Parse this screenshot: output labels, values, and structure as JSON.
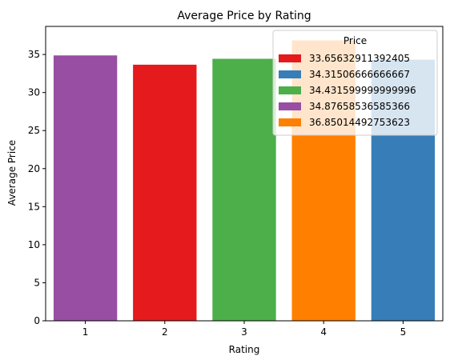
{
  "chart_data": {
    "type": "bar",
    "title": "Average Price by Rating",
    "xlabel": "Rating",
    "ylabel": "Average Price",
    "categories": [
      "1",
      "2",
      "3",
      "4",
      "5"
    ],
    "values": [
      34.87658536585366,
      33.65632911392405,
      34.431599999999996,
      36.85014492753623,
      34.31506666666667
    ],
    "bar_colors": [
      "#984ea3",
      "#e41a1c",
      "#4daf4a",
      "#ff7f00",
      "#377eb8"
    ],
    "ylim": [
      0,
      38.69
    ],
    "yticks": [
      "0",
      "5",
      "10",
      "15",
      "20",
      "25",
      "30",
      "35"
    ],
    "grid": false,
    "legend": {
      "title": "Price",
      "placement": "upper right",
      "entries": [
        {
          "label": "33.65632911392405",
          "color": "#e41a1c"
        },
        {
          "label": "34.31506666666667",
          "color": "#377eb8"
        },
        {
          "label": "34.431599999999996",
          "color": "#4daf4a"
        },
        {
          "label": "34.87658536585366",
          "color": "#984ea3"
        },
        {
          "label": "36.85014492753623",
          "color": "#ff7f00"
        }
      ]
    }
  }
}
